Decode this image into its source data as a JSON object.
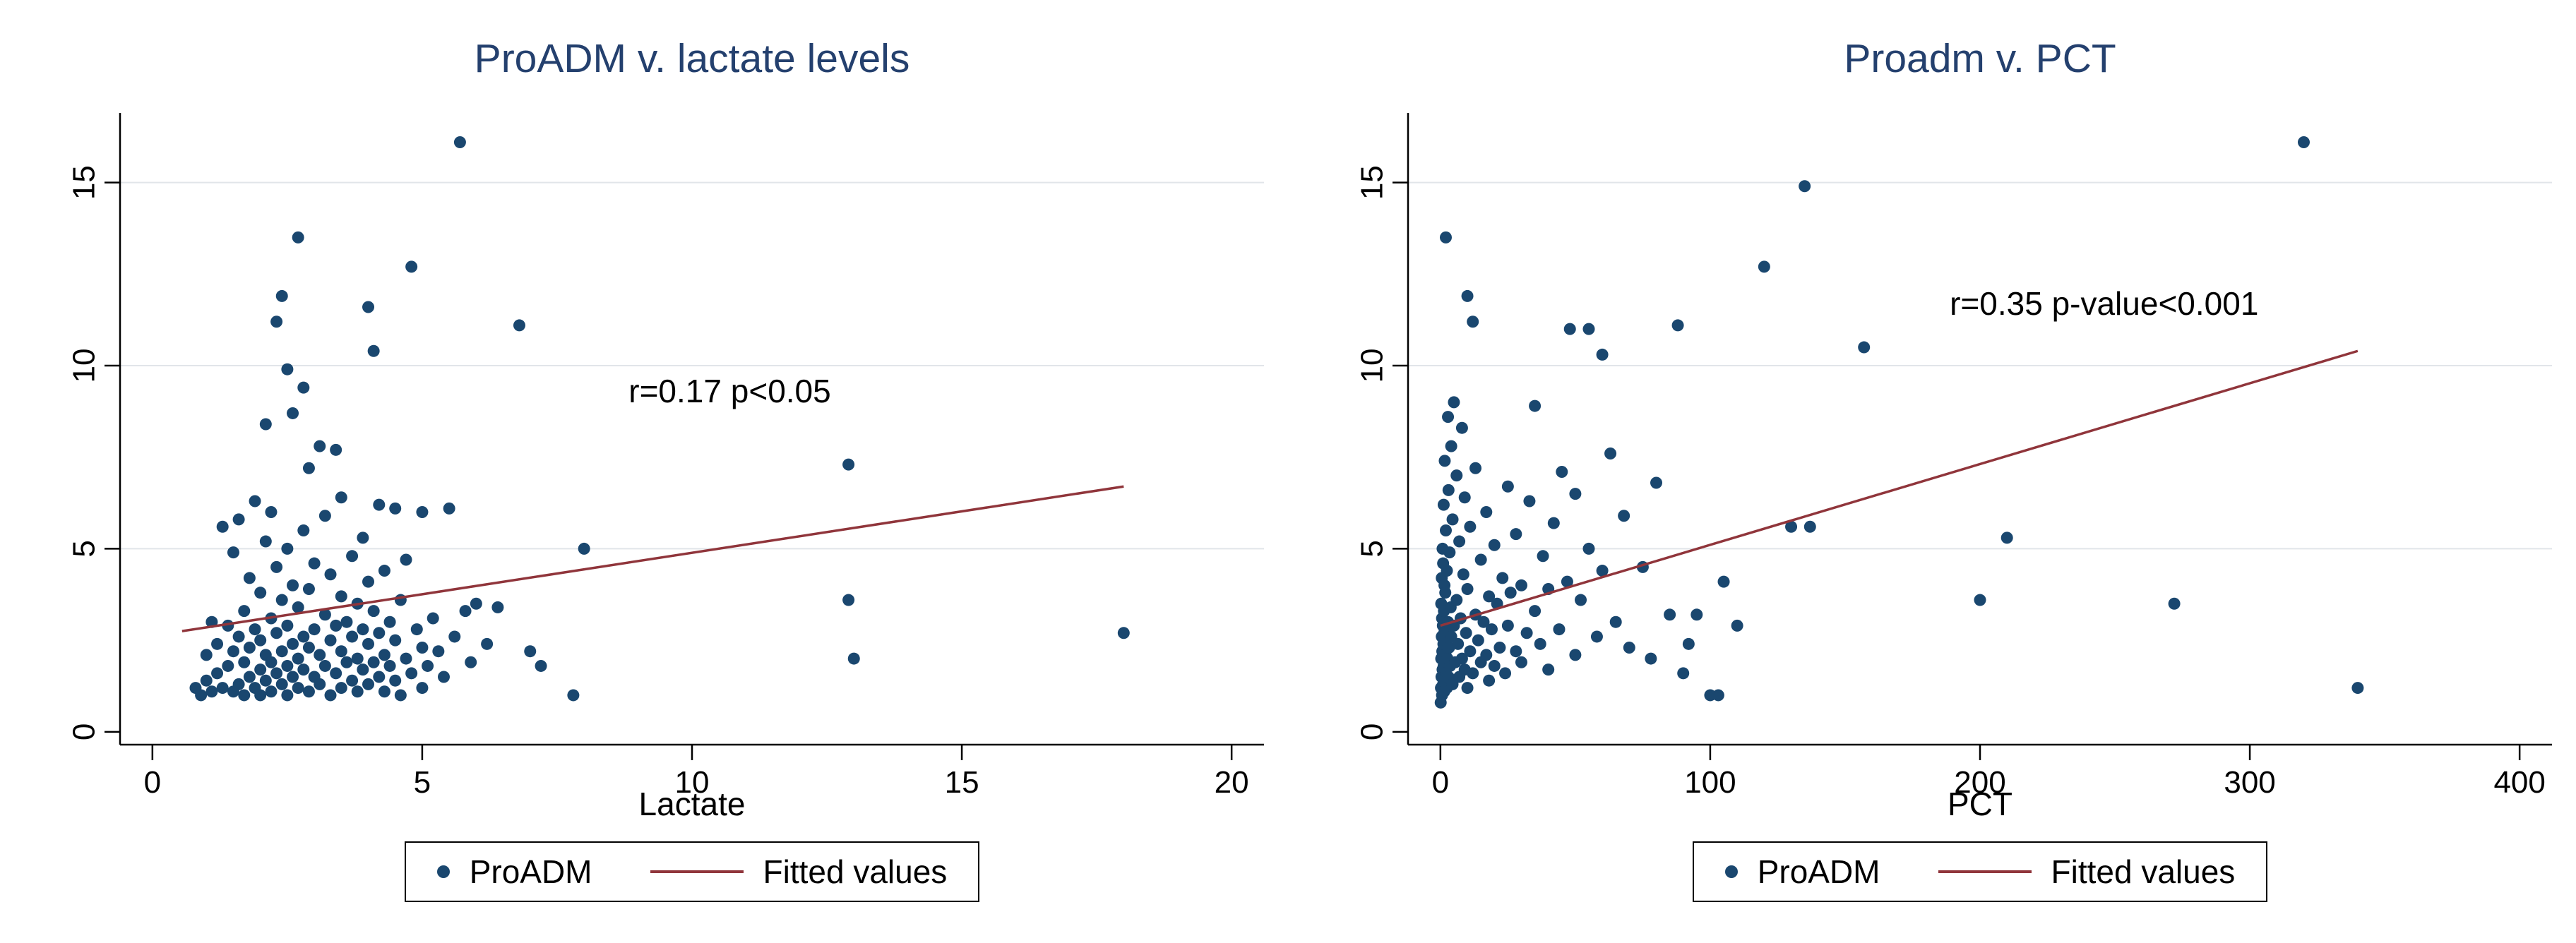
{
  "colors": {
    "background": "#ffffff",
    "title": "#24406e",
    "marker": "#1a476f",
    "fit_line": "#90353b",
    "grid": "#e1e5e9",
    "axis": "#000000",
    "text": "#000000",
    "legend_border": "#000000"
  },
  "chart_data": [
    {
      "type": "scatter",
      "title": "ProADM v. lactate levels",
      "xlabel": "Lactate",
      "ylabel": "",
      "x_ticks": [
        0,
        5,
        10,
        15,
        20
      ],
      "y_ticks": [
        0,
        5,
        10,
        15
      ],
      "x_range": [
        -0.6,
        20.6
      ],
      "y_range": [
        -0.35,
        16.9
      ],
      "grid": "horizontal",
      "legend_position": "bottom",
      "annotation": {
        "text": "r=0.17 p<0.05",
        "x": 10.7,
        "y": 9.3
      },
      "fit_line": {
        "x1": 0.55,
        "y1": 2.75,
        "x2": 18.0,
        "y2": 6.7
      },
      "legend": [
        {
          "marker": "dot",
          "label": "ProADM"
        },
        {
          "marker": "line",
          "label": "Fitted values"
        }
      ],
      "points": [
        [
          0.8,
          1.2
        ],
        [
          0.9,
          1.0
        ],
        [
          1.0,
          1.4
        ],
        [
          1.0,
          2.1
        ],
        [
          1.1,
          1.1
        ],
        [
          1.1,
          3.0
        ],
        [
          1.2,
          1.6
        ],
        [
          1.2,
          2.4
        ],
        [
          1.3,
          1.2
        ],
        [
          1.3,
          5.6
        ],
        [
          1.4,
          1.8
        ],
        [
          1.4,
          2.9
        ],
        [
          1.5,
          1.1
        ],
        [
          1.5,
          2.2
        ],
        [
          1.5,
          4.9
        ],
        [
          1.6,
          1.3
        ],
        [
          1.6,
          2.6
        ],
        [
          1.6,
          5.8
        ],
        [
          1.7,
          1.0
        ],
        [
          1.7,
          1.9
        ],
        [
          1.7,
          3.3
        ],
        [
          1.8,
          1.5
        ],
        [
          1.8,
          2.3
        ],
        [
          1.8,
          4.2
        ],
        [
          1.9,
          1.2
        ],
        [
          1.9,
          2.8
        ],
        [
          1.9,
          6.3
        ],
        [
          2.0,
          1.0
        ],
        [
          2.0,
          1.7
        ],
        [
          2.0,
          2.5
        ],
        [
          2.0,
          3.8
        ],
        [
          2.1,
          1.4
        ],
        [
          2.1,
          2.1
        ],
        [
          2.1,
          5.2
        ],
        [
          2.1,
          8.4
        ],
        [
          2.2,
          1.1
        ],
        [
          2.2,
          1.9
        ],
        [
          2.2,
          3.1
        ],
        [
          2.2,
          6.0
        ],
        [
          2.3,
          1.6
        ],
        [
          2.3,
          2.7
        ],
        [
          2.3,
          4.5
        ],
        [
          2.3,
          11.2
        ],
        [
          2.4,
          1.3
        ],
        [
          2.4,
          2.2
        ],
        [
          2.4,
          3.6
        ],
        [
          2.4,
          11.9
        ],
        [
          2.5,
          1.0
        ],
        [
          2.5,
          1.8
        ],
        [
          2.5,
          2.9
        ],
        [
          2.5,
          5.0
        ],
        [
          2.5,
          9.9
        ],
        [
          2.6,
          1.5
        ],
        [
          2.6,
          2.4
        ],
        [
          2.6,
          4.0
        ],
        [
          2.6,
          8.7
        ],
        [
          2.7,
          1.2
        ],
        [
          2.7,
          2.0
        ],
        [
          2.7,
          3.4
        ],
        [
          2.7,
          13.5
        ],
        [
          2.8,
          1.7
        ],
        [
          2.8,
          2.6
        ],
        [
          2.8,
          5.5
        ],
        [
          2.8,
          9.4
        ],
        [
          2.9,
          1.1
        ],
        [
          2.9,
          2.3
        ],
        [
          2.9,
          3.9
        ],
        [
          2.9,
          7.2
        ],
        [
          3.0,
          1.5
        ],
        [
          3.0,
          2.8
        ],
        [
          3.0,
          4.6
        ],
        [
          3.1,
          1.3
        ],
        [
          3.1,
          2.1
        ],
        [
          3.1,
          7.8
        ],
        [
          3.2,
          1.8
        ],
        [
          3.2,
          3.2
        ],
        [
          3.2,
          5.9
        ],
        [
          3.3,
          1.0
        ],
        [
          3.3,
          2.5
        ],
        [
          3.3,
          4.3
        ],
        [
          3.4,
          1.6
        ],
        [
          3.4,
          2.9
        ],
        [
          3.4,
          7.7
        ],
        [
          3.5,
          1.2
        ],
        [
          3.5,
          2.2
        ],
        [
          3.5,
          3.7
        ],
        [
          3.5,
          6.4
        ],
        [
          3.6,
          1.9
        ],
        [
          3.6,
          3.0
        ],
        [
          3.7,
          1.4
        ],
        [
          3.7,
          2.6
        ],
        [
          3.7,
          4.8
        ],
        [
          3.8,
          1.1
        ],
        [
          3.8,
          2.0
        ],
        [
          3.8,
          3.5
        ],
        [
          3.9,
          1.7
        ],
        [
          3.9,
          2.8
        ],
        [
          3.9,
          5.3
        ],
        [
          4.0,
          1.3
        ],
        [
          4.0,
          2.4
        ],
        [
          4.0,
          4.1
        ],
        [
          4.0,
          11.6
        ],
        [
          4.1,
          1.9
        ],
        [
          4.1,
          3.3
        ],
        [
          4.1,
          10.4
        ],
        [
          4.2,
          1.5
        ],
        [
          4.2,
          2.7
        ],
        [
          4.2,
          6.2
        ],
        [
          4.3,
          1.1
        ],
        [
          4.3,
          2.1
        ],
        [
          4.3,
          4.4
        ],
        [
          4.4,
          1.8
        ],
        [
          4.4,
          3.0
        ],
        [
          4.5,
          1.4
        ],
        [
          4.5,
          2.5
        ],
        [
          4.5,
          6.1
        ],
        [
          4.6,
          1.0
        ],
        [
          4.6,
          3.6
        ],
        [
          4.7,
          2.0
        ],
        [
          4.7,
          4.7
        ],
        [
          4.8,
          1.6
        ],
        [
          4.8,
          12.7
        ],
        [
          4.9,
          2.8
        ],
        [
          5.0,
          1.2
        ],
        [
          5.0,
          2.3
        ],
        [
          5.0,
          6.0
        ],
        [
          5.1,
          1.8
        ],
        [
          5.2,
          3.1
        ],
        [
          5.3,
          2.2
        ],
        [
          5.4,
          1.5
        ],
        [
          5.5,
          6.1
        ],
        [
          5.6,
          2.6
        ],
        [
          5.7,
          16.1
        ],
        [
          5.8,
          3.3
        ],
        [
          5.9,
          1.9
        ],
        [
          6.0,
          3.5
        ],
        [
          6.2,
          2.4
        ],
        [
          6.4,
          3.4
        ],
        [
          6.8,
          11.1
        ],
        [
          7.0,
          2.2
        ],
        [
          7.2,
          1.8
        ],
        [
          7.8,
          1.0
        ],
        [
          8.0,
          5.0
        ],
        [
          12.9,
          7.3
        ],
        [
          12.9,
          3.6
        ],
        [
          13.0,
          2.0
        ],
        [
          18.0,
          2.7
        ]
      ]
    },
    {
      "type": "scatter",
      "title": "Proadm v. PCT",
      "xlabel": "PCT",
      "ylabel": "",
      "x_ticks": [
        0,
        100,
        200,
        300,
        400
      ],
      "y_ticks": [
        0,
        5,
        10,
        15
      ],
      "x_range": [
        -12,
        412
      ],
      "y_range": [
        -0.35,
        16.9
      ],
      "grid": "horizontal",
      "legend_position": "bottom",
      "annotation": {
        "text": "r=0.35 p-value<0.001",
        "x": 246,
        "y": 11.7
      },
      "fit_line": {
        "x1": 0,
        "y1": 2.9,
        "x2": 340,
        "y2": 10.4
      },
      "legend": [
        {
          "marker": "dot",
          "label": "ProADM"
        },
        {
          "marker": "line",
          "label": "Fitted values"
        }
      ],
      "points": [
        [
          0.1,
          0.8
        ],
        [
          0.2,
          1.2
        ],
        [
          0.3,
          2.0
        ],
        [
          0.3,
          3.5
        ],
        [
          0.4,
          1.5
        ],
        [
          0.5,
          2.6
        ],
        [
          0.5,
          4.2
        ],
        [
          0.6,
          1.0
        ],
        [
          0.6,
          3.1
        ],
        [
          0.7,
          2.2
        ],
        [
          0.8,
          1.7
        ],
        [
          0.8,
          5.0
        ],
        [
          0.9,
          2.9
        ],
        [
          1.0,
          1.3
        ],
        [
          1.0,
          4.6
        ],
        [
          1.1,
          2.4
        ],
        [
          1.2,
          1.8
        ],
        [
          1.2,
          6.2
        ],
        [
          1.3,
          3.3
        ],
        [
          1.4,
          1.1
        ],
        [
          1.4,
          2.7
        ],
        [
          1.5,
          4.0
        ],
        [
          1.6,
          1.9
        ],
        [
          1.6,
          7.4
        ],
        [
          1.7,
          2.5
        ],
        [
          1.8,
          1.4
        ],
        [
          1.8,
          3.8
        ],
        [
          1.9,
          2.1
        ],
        [
          2.0,
          1.6
        ],
        [
          2.0,
          5.5
        ],
        [
          2.0,
          13.5
        ],
        [
          2.2,
          2.8
        ],
        [
          2.4,
          1.2
        ],
        [
          2.4,
          4.4
        ],
        [
          2.6,
          2.0
        ],
        [
          2.8,
          3.0
        ],
        [
          2.8,
          8.6
        ],
        [
          3.0,
          1.5
        ],
        [
          3.0,
          6.6
        ],
        [
          3.2,
          2.3
        ],
        [
          3.4,
          4.9
        ],
        [
          3.6,
          1.8
        ],
        [
          3.8,
          3.4
        ],
        [
          4.0,
          2.6
        ],
        [
          4.0,
          7.8
        ],
        [
          4.5,
          1.3
        ],
        [
          4.5,
          5.8
        ],
        [
          5.0,
          2.9
        ],
        [
          5.0,
          9.0
        ],
        [
          5.5,
          1.9
        ],
        [
          6.0,
          3.6
        ],
        [
          6.0,
          7.0
        ],
        [
          6.5,
          2.4
        ],
        [
          7.0,
          1.5
        ],
        [
          7.0,
          5.2
        ],
        [
          7.5,
          3.1
        ],
        [
          8.0,
          2.0
        ],
        [
          8.0,
          8.3
        ],
        [
          8.5,
          4.3
        ],
        [
          9.0,
          1.7
        ],
        [
          9.0,
          6.4
        ],
        [
          9.5,
          2.7
        ],
        [
          10.0,
          1.2
        ],
        [
          10.0,
          3.9
        ],
        [
          10.0,
          11.9
        ],
        [
          11.0,
          2.2
        ],
        [
          11.0,
          5.6
        ],
        [
          12.0,
          1.6
        ],
        [
          12.0,
          11.2
        ],
        [
          13.0,
          3.2
        ],
        [
          13.0,
          7.2
        ],
        [
          14.0,
          2.5
        ],
        [
          15.0,
          1.9
        ],
        [
          15.0,
          4.7
        ],
        [
          16.0,
          3.0
        ],
        [
          17.0,
          2.1
        ],
        [
          17.0,
          6.0
        ],
        [
          18.0,
          1.4
        ],
        [
          18.0,
          3.7
        ],
        [
          19.0,
          2.8
        ],
        [
          20.0,
          1.8
        ],
        [
          20.0,
          5.1
        ],
        [
          21.0,
          3.5
        ],
        [
          22.0,
          2.3
        ],
        [
          23.0,
          4.2
        ],
        [
          24.0,
          1.6
        ],
        [
          25.0,
          2.9
        ],
        [
          25.0,
          6.7
        ],
        [
          26.0,
          3.8
        ],
        [
          28.0,
          2.2
        ],
        [
          28.0,
          5.4
        ],
        [
          30.0,
          1.9
        ],
        [
          30.0,
          4.0
        ],
        [
          32.0,
          2.7
        ],
        [
          33.0,
          6.3
        ],
        [
          35.0,
          3.3
        ],
        [
          35.0,
          8.9
        ],
        [
          37.0,
          2.4
        ],
        [
          38.0,
          4.8
        ],
        [
          40.0,
          1.7
        ],
        [
          40.0,
          3.9
        ],
        [
          42.0,
          5.7
        ],
        [
          44.0,
          2.8
        ],
        [
          45.0,
          7.1
        ],
        [
          47.0,
          4.1
        ],
        [
          48.0,
          11.0
        ],
        [
          50.0,
          2.1
        ],
        [
          50.0,
          6.5
        ],
        [
          52.0,
          3.6
        ],
        [
          55.0,
          11.0
        ],
        [
          55.0,
          5.0
        ],
        [
          58.0,
          2.6
        ],
        [
          60.0,
          10.3
        ],
        [
          60.0,
          4.4
        ],
        [
          63.0,
          7.6
        ],
        [
          65.0,
          3.0
        ],
        [
          68.0,
          5.9
        ],
        [
          70.0,
          2.3
        ],
        [
          75.0,
          4.5
        ],
        [
          78.0,
          2.0
        ],
        [
          80.0,
          6.8
        ],
        [
          85.0,
          3.2
        ],
        [
          88.0,
          11.1
        ],
        [
          90.0,
          1.6
        ],
        [
          92.0,
          2.4
        ],
        [
          95.0,
          3.2
        ],
        [
          100.0,
          1.0
        ],
        [
          103.0,
          1.0
        ],
        [
          105.0,
          4.1
        ],
        [
          110.0,
          2.9
        ],
        [
          120.0,
          12.7
        ],
        [
          130.0,
          5.6
        ],
        [
          137.0,
          5.6
        ],
        [
          135.0,
          14.9
        ],
        [
          157.0,
          10.5
        ],
        [
          200.0,
          3.6
        ],
        [
          210.0,
          5.3
        ],
        [
          272.0,
          3.5
        ],
        [
          320.0,
          16.1
        ],
        [
          340.0,
          1.2
        ]
      ]
    }
  ]
}
